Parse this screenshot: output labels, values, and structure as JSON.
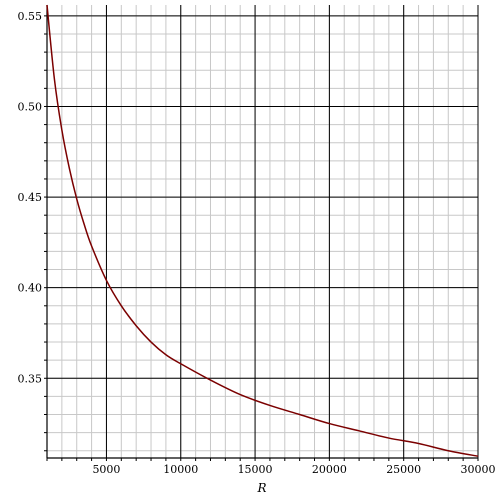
{
  "chart_data": {
    "type": "line",
    "title": "",
    "xlabel": "R",
    "ylabel": "",
    "xlim": [
      1000,
      30000
    ],
    "ylim": [
      0.306,
      0.556
    ],
    "x_ticks": [
      5000,
      10000,
      15000,
      20000,
      25000,
      30000
    ],
    "x_tick_labels": [
      "5000",
      "10000",
      "15000",
      "20000",
      "25000",
      "30000"
    ],
    "y_ticks": [
      0.35,
      0.4,
      0.45,
      0.5,
      0.55
    ],
    "y_tick_labels": [
      "0.35",
      "0.40",
      "0.45",
      "0.50",
      "0.55"
    ],
    "grid": true,
    "legend": "none",
    "colors": {
      "line": "#7b0000",
      "major_grid": "#000000",
      "minor_grid": "#c8c8c8"
    },
    "series": [
      {
        "x": [
          1000,
          1500,
          2000,
          2500,
          3000,
          3500,
          4000,
          5000,
          6000,
          7000,
          8000,
          9000,
          10000,
          12000,
          14000,
          16000,
          18000,
          20000,
          22000,
          24000,
          26000,
          28000,
          30000
        ],
        "y": [
          0.556,
          0.515,
          0.487,
          0.466,
          0.449,
          0.435,
          0.423,
          0.404,
          0.39,
          0.379,
          0.37,
          0.363,
          0.358,
          0.349,
          0.341,
          0.335,
          0.33,
          0.325,
          0.321,
          0.317,
          0.314,
          0.31,
          0.307
        ]
      }
    ]
  }
}
